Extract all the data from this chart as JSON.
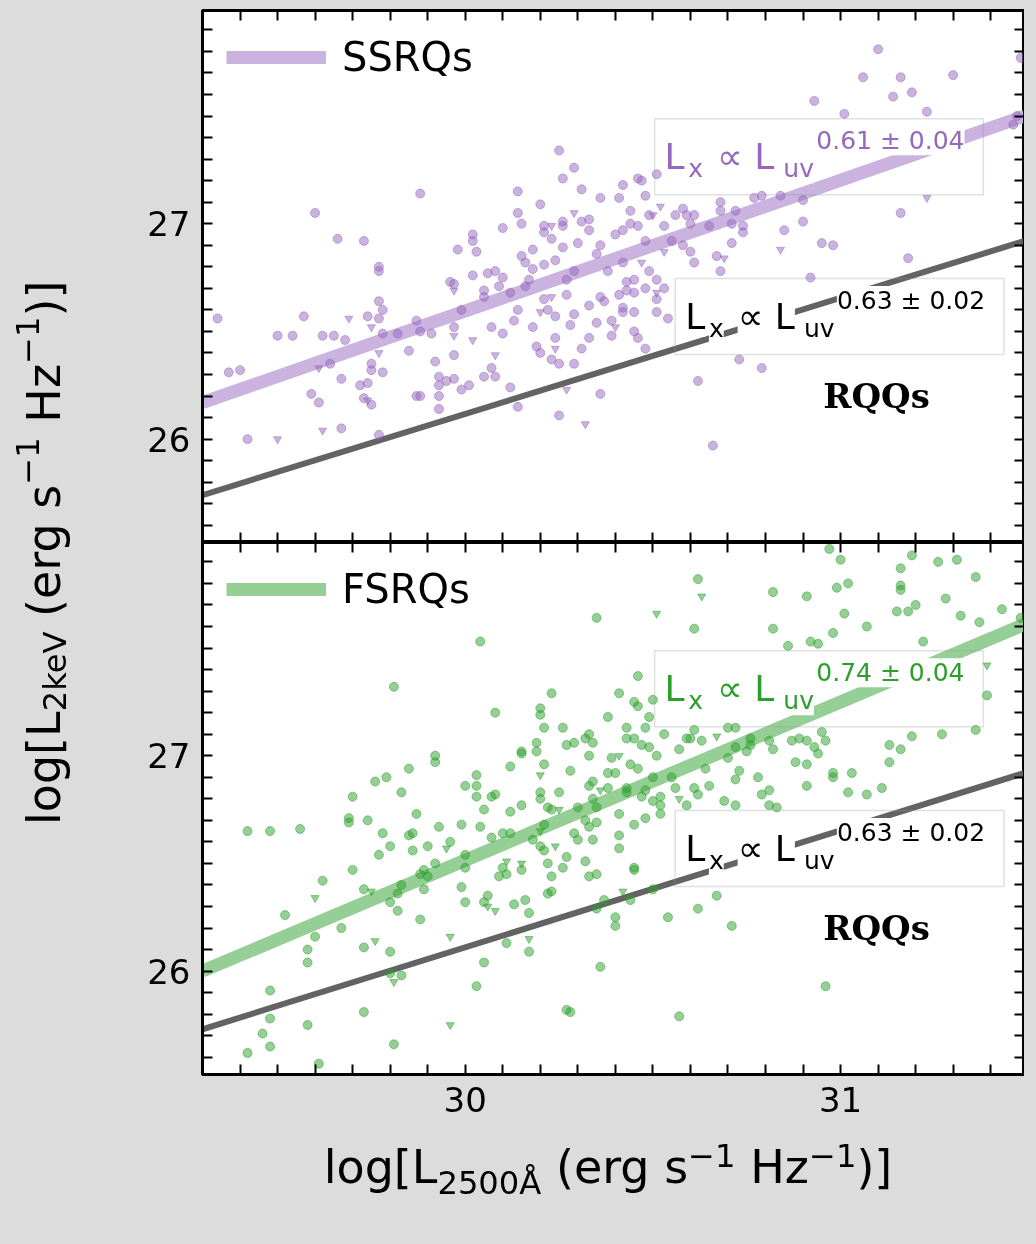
{
  "chart_data": [
    {
      "type": "scatter",
      "ylabel": "log[L$_{2keV}$ (erg s$^{−1}$ Hz$^{−1}$)]",
      "legend": "top left",
      "tick_labels": "y",
      "xlim": [
        29.3,
        31.49
      ],
      "ylim": [
        25.52,
        27.99
      ],
      "xticks": [
        {
          "value": 29.4,
          "label": null
        },
        {
          "value": 29.5,
          "label": null
        },
        {
          "value": 29.6,
          "label": null
        },
        {
          "value": 29.7,
          "label": null
        },
        {
          "value": 29.8,
          "label": null
        },
        {
          "value": 29.9,
          "label": null
        },
        30,
        {
          "value": 30.1,
          "label": null
        },
        {
          "value": 30.2,
          "label": null
        },
        {
          "value": 30.3,
          "label": null
        },
        {
          "value": 30.4,
          "label": null
        },
        {
          "value": 30.5,
          "label": null
        },
        {
          "value": 30.6,
          "label": null
        },
        {
          "value": 30.7,
          "label": null
        },
        {
          "value": 30.8,
          "label": null
        },
        {
          "value": 30.9,
          "label": null
        },
        31,
        {
          "value": 31.1,
          "label": null
        },
        {
          "value": 31.2,
          "label": null
        },
        {
          "value": 31.3,
          "label": null
        },
        {
          "value": 31.4,
          "label": null
        }
      ],
      "yticks": [
        {
          "value": 25.6,
          "label": null
        },
        {
          "value": 25.7,
          "label": null
        },
        {
          "value": 25.8,
          "label": null
        },
        {
          "value": 25.9,
          "label": null
        },
        26,
        {
          "value": 26.1,
          "label": null
        },
        {
          "value": 26.2,
          "label": null
        },
        {
          "value": 26.3,
          "label": null
        },
        {
          "value": 26.4,
          "label": null
        },
        {
          "value": 26.5,
          "label": null
        },
        {
          "value": 26.6,
          "label": null
        },
        {
          "value": 26.7,
          "label": null
        },
        {
          "value": 26.8,
          "label": null
        },
        {
          "value": 26.9,
          "label": null
        },
        27,
        {
          "value": 27.1,
          "label": null
        },
        {
          "value": 27.2,
          "label": null
        },
        {
          "value": 27.3,
          "label": null
        },
        {
          "value": 27.4,
          "label": null
        },
        {
          "value": 27.5,
          "label": null
        },
        {
          "value": 27.6,
          "label": null
        },
        {
          "value": 27.7,
          "label": null
        },
        {
          "value": 27.8,
          "label": null
        },
        {
          "value": 27.9,
          "label": null
        }
      ],
      "annotations": [
        "L$_{x}$ ∝ L$_{uv}$$^{0.61 ± 0.04}$",
        "L$_{x}$ ∝ L$_{uv}$$^{0.63 ± 0.02}$",
        "RQQs"
      ],
      "series": [
        {
          "marker": "circle",
          "color": "#cab3de",
          "x": [
            29.34,
            29.37,
            29.4,
            29.42,
            29.5,
            29.54,
            29.57,
            29.6,
            29.59,
            29.61,
            29.62,
            29.64,
            29.65,
            29.66,
            29.67,
            29.67,
            29.68,
            29.72,
            29.73,
            29.73,
            29.74,
            29.74,
            29.75,
            29.75,
            29.75,
            29.77,
            29.77,
            29.77,
            29.77,
            29.78,
            29.77,
            29.78,
            29.78,
            29.82,
            29.85,
            29.87,
            29.88,
            29.88,
            29.87,
            29.88,
            29.91,
            29.92,
            29.93,
            29.93,
            29.93,
            29.93,
            29.95,
            29.97,
            29.96,
            29.97,
            29.98,
            29.97,
            29.97,
            29.99,
            29.99,
            30.01,
            30.02,
            30.02,
            30.03,
            30.02,
            30.05,
            30.05,
            30.06,
            30.05,
            30.07,
            30.08,
            30.07,
            30.08,
            30.09,
            30.1,
            30.1,
            30.1,
            30.12,
            30.12,
            30.13,
            30.14,
            30.14,
            30.14,
            30.14,
            30.15,
            30.15,
            30.16,
            30.16,
            30.17,
            30.18,
            30.18,
            30.18,
            30.19,
            30.2,
            30.2,
            30.21,
            30.21,
            30.21,
            30.21,
            30.22,
            30.23,
            30.23,
            30.24,
            30.24,
            30.24,
            30.25,
            30.25,
            30.25,
            30.26,
            30.26,
            30.26,
            30.26,
            30.27,
            30.27,
            30.28,
            30.29,
            30.29,
            30.29,
            30.29,
            30.3,
            30.31,
            30.31,
            30.31,
            30.33,
            30.33,
            30.33,
            30.33,
            30.35,
            30.35,
            30.36,
            30.36,
            30.36,
            30.36,
            30.37,
            30.38,
            30.39,
            30.39,
            31.1,
            31.06,
            31.16,
            31.19,
            31.14,
            31.3,
            30.93,
            31.01,
            31.23,
            31.46,
            31.47,
            31.48,
            30.42,
            30.46,
            30.47,
            30.41,
            30.48,
            30.51,
            30.44,
            30.49,
            30.56,
            30.58,
            30.59,
            30.61,
            30.6,
            30.68,
            30.68,
            30.72,
            30.44,
            30.46,
            30.4,
            30.42,
            30.53,
            30.65,
            30.71,
            30.74,
            30.74,
            30.77,
            30.79,
            30.84,
            30.9,
            30.9,
            30.85,
            30.48,
            30.55,
            30.58,
            30.71,
            30.95,
            30.98,
            31.16,
            30.42,
            30.6,
            30.61,
            30.67,
            30.68,
            30.49,
            30.51,
            30.43,
            30.45,
            30.41,
            30.43,
            30.45,
            30.48,
            30.53,
            30.51,
            30.51,
            30.42,
            30.42,
            30.45,
            30.54,
            30.45,
            30.46,
            30.48,
            30.73,
            30.79,
            30.62,
            30.66,
            31.18,
            30.92
          ],
          "values": [
            26.56,
            26.31,
            26.32,
            26.0,
            26.48,
            26.48,
            26.57,
            27.05,
            26.21,
            26.17,
            26.48,
            26.35,
            26.48,
            26.93,
            26.28,
            26.05,
            26.46,
            26.25,
            26.92,
            26.19,
            26.26,
            26.57,
            26.35,
            26.32,
            26.16,
            26.02,
            26.78,
            26.8,
            26.64,
            26.6,
            26.56,
            26.49,
            26.31,
            26.49,
            26.41,
            26.55,
            27.14,
            26.5,
            26.2,
            26.2,
            26.49,
            26.36,
            26.29,
            26.14,
            26.2,
            26.25,
            26.27,
            26.28,
            26.73,
            26.72,
            26.88,
            26.39,
            26.52,
            26.6,
            26.23,
            26.25,
            26.92,
            26.95,
            26.87,
            26.76,
            26.69,
            26.66,
            26.77,
            26.29,
            26.33,
            26.29,
            26.52,
            26.78,
            26.71,
            26.98,
            26.75,
            26.49,
            26.68,
            26.24,
            26.55,
            26.15,
            26.6,
            27.05,
            27.15,
            26.85,
            27.0,
            26.82,
            26.71,
            26.74,
            26.88,
            26.52,
            26.79,
            26.43,
            27.09,
            26.4,
            26.81,
            26.65,
            26.99,
            26.96,
            26.6,
            26.37,
            26.93,
            26.57,
            26.83,
            26.47,
            26.35,
            26.11,
            27.34,
            26.89,
            27.21,
            26.99,
            27.01,
            26.74,
            26.67,
            26.53,
            26.35,
            26.58,
            27.26,
            26.78,
            26.91,
            27.01,
            27.16,
            26.42,
            26.47,
            26.97,
            27.02,
            26.62,
            26.86,
            26.54,
            27.12,
            26.66,
            26.9,
            26.21,
            26.64,
            26.78,
            26.55,
            26.48,
            27.81,
            27.68,
            27.68,
            27.61,
            27.59,
            27.69,
            27.57,
            27.51,
            27.52,
            27.46,
            27.5,
            27.77,
            27.18,
            27.21,
            27.2,
            27.12,
            27.13,
            27.23,
            27.06,
            27.04,
            27.04,
            27.07,
            27.04,
            27.04,
            27.0,
            27.1,
            27.06,
            27.06,
            27.0,
            26.99,
            26.95,
            26.97,
            26.99,
            26.99,
            27.0,
            26.99,
            26.96,
            27.12,
            27.13,
            27.13,
            27.11,
            27.01,
            26.97,
            26.92,
            26.92,
            26.9,
            26.91,
            26.91,
            26.9,
            27.05,
            26.82,
            26.87,
            26.82,
            26.85,
            26.78,
            26.78,
            26.74,
            26.73,
            26.74,
            26.67,
            26.69,
            26.68,
            26.7,
            26.7,
            26.65,
            26.59,
            26.61,
            26.59,
            26.59,
            26.56,
            26.5,
            26.47,
            26.42,
            26.37,
            26.33,
            26.27,
            25.97,
            26.84,
            26.75
          ]
        },
        {
          "marker": "triangle",
          "color": "#cab3de",
          "x": [
            29.5,
            29.62,
            29.61,
            29.69,
            29.75,
            29.77,
            29.74,
            29.97,
            29.97,
            30.02,
            30.08,
            30.2,
            30.23,
            30.24,
            30.27,
            30.32,
            30.29,
            30.23,
            30.52,
            30.5,
            30.53,
            30.47,
            30.69,
            30.84,
            31.23,
            30.4,
            30.51
          ],
          "values": [
            26.0,
            26.04,
            26.33,
            26.56,
            26.52,
            26.4,
            26.18,
            26.69,
            26.48,
            26.46,
            26.39,
            26.59,
            26.66,
            26.42,
            26.23,
            26.07,
            27.05,
            26.99,
            27.08,
            27.04,
            26.87,
            26.82,
            26.84,
            26.88,
            27.12,
            26.52,
            26.68
          ]
        },
        {
          "type": "line",
          "color": "#636363",
          "x": [
            29.3,
            31.49
          ],
          "values": [
            25.74,
            26.92
          ]
        },
        {
          "type": "line",
          "name": "SSRQs",
          "color": "#cab3de",
          "x": [
            29.3,
            31.49
          ],
          "values": [
            26.17,
            27.5
          ]
        }
      ]
    },
    {
      "type": "scatter",
      "xlabel": "log[L$_{2500Å}$ (erg s$^{−1}$ Hz$^{−1}$)]",
      "legend": "top left",
      "xlim": [
        29.3,
        31.49
      ],
      "ylim": [
        25.52,
        27.99
      ],
      "xticks": [
        {
          "value": 29.4,
          "label": null
        },
        {
          "value": 29.5,
          "label": null
        },
        {
          "value": 29.6,
          "label": null
        },
        {
          "value": 29.7,
          "label": null
        },
        {
          "value": 29.8,
          "label": null
        },
        {
          "value": 29.9,
          "label": null
        },
        30,
        {
          "value": 30.1,
          "label": null
        },
        {
          "value": 30.2,
          "label": null
        },
        {
          "value": 30.3,
          "label": null
        },
        {
          "value": 30.4,
          "label": null
        },
        {
          "value": 30.5,
          "label": null
        },
        {
          "value": 30.6,
          "label": null
        },
        {
          "value": 30.7,
          "label": null
        },
        {
          "value": 30.8,
          "label": null
        },
        {
          "value": 30.9,
          "label": null
        },
        31,
        {
          "value": 31.1,
          "label": null
        },
        {
          "value": 31.2,
          "label": null
        },
        {
          "value": 31.3,
          "label": null
        },
        {
          "value": 31.4,
          "label": null
        }
      ],
      "yticks": [
        {
          "value": 25.6,
          "label": null
        },
        {
          "value": 25.7,
          "label": null
        },
        {
          "value": 25.8,
          "label": null
        },
        {
          "value": 25.9,
          "label": null
        },
        26,
        {
          "value": 26.1,
          "label": null
        },
        {
          "value": 26.2,
          "label": null
        },
        {
          "value": 26.3,
          "label": null
        },
        {
          "value": 26.4,
          "label": null
        },
        {
          "value": 26.5,
          "label": null
        },
        {
          "value": 26.6,
          "label": null
        },
        {
          "value": 26.7,
          "label": null
        },
        {
          "value": 26.8,
          "label": null
        },
        {
          "value": 26.9,
          "label": null
        },
        27,
        {
          "value": 27.1,
          "label": null
        },
        {
          "value": 27.2,
          "label": null
        },
        {
          "value": 27.3,
          "label": null
        },
        {
          "value": 27.4,
          "label": null
        },
        {
          "value": 27.5,
          "label": null
        },
        {
          "value": 27.6,
          "label": null
        },
        {
          "value": 27.7,
          "label": null
        },
        {
          "value": 27.8,
          "label": null
        },
        {
          "value": 27.9,
          "label": null
        }
      ],
      "annotations": [
        "L$_{x}$ ∝ L$_{uv}$$^{0.74 ± 0.04}$",
        "L$_{x}$ ∝ L$_{uv}$$^{0.63 ± 0.02}$",
        "RQQs"
      ],
      "series": [
        {
          "marker": "circle",
          "color": "#95cf95",
          "x": [
            29.42,
            29.48,
            29.56,
            29.52,
            29.48,
            29.48,
            29.46,
            29.48,
            29.42,
            29.58,
            29.58,
            29.58,
            29.6,
            29.61,
            29.62,
            29.67,
            29.69,
            29.69,
            29.7,
            29.7,
            29.73,
            29.73,
            29.73,
            29.74,
            29.76,
            29.77,
            29.78,
            29.79,
            29.8,
            29.8,
            29.8,
            29.8,
            29.81,
            29.81,
            29.82,
            29.82,
            29.83,
            29.83,
            29.83,
            29.85,
            29.85,
            29.86,
            29.86,
            29.87,
            29.88,
            29.89,
            29.88,
            29.89,
            29.9,
            29.9,
            29.92,
            29.92,
            29.93,
            29.92,
            29.96,
            29.99,
            29.99,
            30.0,
            30.0,
            30.0,
            30.0,
            30.03,
            30.03,
            30.03,
            30.03,
            30.04,
            30.04,
            30.05,
            30.05,
            30.06,
            30.05,
            30.07,
            30.07,
            30.08,
            30.08,
            30.09,
            30.1,
            30.1,
            30.11,
            30.11,
            30.12,
            30.12,
            30.12,
            30.13,
            30.15,
            30.15,
            30.15,
            30.15,
            30.16,
            30.17,
            30.17,
            30.18,
            30.19,
            30.19,
            30.2,
            30.2,
            30.2,
            30.2,
            30.2,
            30.21,
            30.21,
            30.21,
            30.21,
            30.22,
            30.22,
            30.22,
            30.23,
            30.23,
            30.23,
            30.23,
            30.25,
            30.26,
            30.26,
            30.27,
            30.27,
            30.28,
            30.27,
            30.28,
            30.29,
            30.29,
            30.3,
            30.3,
            30.32,
            30.32,
            30.33,
            30.32,
            30.33,
            30.33,
            30.33,
            30.34,
            30.34,
            30.35,
            30.34,
            30.33,
            30.35,
            30.35,
            30.35,
            30.35,
            30.34,
            30.36,
            30.37,
            30.38,
            30.38,
            30.38,
            30.39,
            30.97,
            31.0,
            31.19,
            31.26,
            31.31,
            31.16,
            31.36,
            30.62,
            30.82,
            30.91,
            30.99,
            31.02,
            31.16,
            31.16,
            31.28,
            31.2,
            31.15,
            31.18,
            31.01,
            31.32,
            31.37,
            31.43,
            31.48,
            30.61,
            30.82,
            31.07,
            30.98,
            30.92,
            30.94,
            30.86,
            31.22,
            30.46,
            30.41,
            30.45,
            30.5,
            30.46,
            30.49,
            30.48,
            30.43,
            30.43,
            30.45,
            30.53,
            30.61,
            30.59,
            30.6,
            30.63,
            30.7,
            30.72,
            30.76,
            30.76,
            30.81,
            30.87,
            30.89,
            30.91,
            30.95,
            30.96,
            30.93,
            30.94,
            30.82,
            30.72,
            30.75,
            30.7,
            30.57,
            30.51,
            30.49,
            30.47,
            31.19,
            31.27,
            31.36,
            31.13,
            31.16,
            31.13,
            31.39,
            30.44,
            30.46,
            30.4,
            30.5,
            30.55,
            30.64,
            30.73,
            30.72,
            30.78,
            30.88,
            30.91,
            30.98,
            30.98,
            31.03,
            30.91,
            31.02,
            31.07,
            31.11,
            30.43,
            30.43,
            30.48,
            30.47,
            30.5,
            30.52,
            30.56,
            30.61,
            30.62,
            30.65,
            30.52,
            30.52,
            30.59,
            30.69,
            30.72,
            30.79,
            30.81,
            30.81,
            30.83,
            30.41,
            30.45,
            30.48,
            30.41,
            30.41,
            30.45,
            30.45,
            30.5,
            30.44,
            30.54,
            30.4,
            30.4,
            30.62,
            30.67,
            30.71,
            30.96,
            30.57
          ],
          "values": [
            26.65,
            26.65,
            26.66,
            26.26,
            25.91,
            25.78,
            25.71,
            25.65,
            25.62,
            26.1,
            26.04,
            25.75,
            26.16,
            25.57,
            26.42,
            26.2,
            26.71,
            26.69,
            26.47,
            26.81,
            26.38,
            26.11,
            25.81,
            26.7,
            26.88,
            26.54,
            26.64,
            26.9,
            26.58,
            26.32,
            26.09,
            25.99,
            27.32,
            25.66,
            26.28,
            26.36,
            25.98,
            26.83,
            26.4,
            26.94,
            26.63,
            26.56,
            26.64,
            26.73,
            26.24,
            26.38,
            26.45,
            26.47,
            26.58,
            26.44,
            27.0,
            26.97,
            26.67,
            26.5,
            26.6,
            26.68,
            26.39,
            26.32,
            26.86,
            26.54,
            26.48,
            25.93,
            26.91,
            26.86,
            26.81,
            26.67,
            27.53,
            26.75,
            26.04,
            26.35,
            26.32,
            26.62,
            26.81,
            27.2,
            26.82,
            26.44,
            26.64,
            26.48,
            26.45,
            26.13,
            26.95,
            26.64,
            26.74,
            26.31,
            26.77,
            27.01,
            27.02,
            26.47,
            26.33,
            26.27,
            26.09,
            26.61,
            27.02,
            27.06,
            27.22,
            27.19,
            26.83,
            26.58,
            26.8,
            26.56,
            26.68,
            27.13,
            26.96,
            26.5,
            26.36,
            26.76,
            26.37,
            27.29,
            26.75,
            26.44,
            26.83,
            26.48,
            27.13,
            26.53,
            25.82,
            25.81,
            27.05,
            26.93,
            27.06,
            26.64,
            26.61,
            26.76,
            26.7,
            26.51,
            26.67,
            27.08,
            26.44,
            27.0,
            27.1,
            26.61,
            27.06,
            26.29,
            26.88,
            26.86,
            26.69,
            26.45,
            27.64,
            26.76,
            26.8,
            26.02,
            26.33,
            26.85,
            27.18,
            26.92,
            26.99,
            27.96,
            27.91,
            27.93,
            27.9,
            27.91,
            27.87,
            27.83,
            27.82,
            27.76,
            27.74,
            27.78,
            27.8,
            27.79,
            27.77,
            27.73,
            27.7,
            27.67,
            27.67,
            27.66,
            27.65,
            27.62,
            27.68,
            27.64,
            27.59,
            27.59,
            27.6,
            27.57,
            27.53,
            27.52,
            27.51,
            27.53,
            27.37,
            27.29,
            27.25,
            27.26,
            27.23,
            27.18,
            27.13,
            27.13,
            27.08,
            27.08,
            27.1,
            27.12,
            27.08,
            27.08,
            27.07,
            27.13,
            27.13,
            27.08,
            27.05,
            27.07,
            27.07,
            27.08,
            27.07,
            27.11,
            27.07,
            27.04,
            27.01,
            27.03,
            27.04,
            27.02,
            26.99,
            27.03,
            27.0,
            27.04,
            27.05,
            27.09,
            27.1,
            27.12,
            27.05,
            27.03,
            26.97,
            27.28,
            26.96,
            26.94,
            26.92,
            26.9,
            26.9,
            26.94,
            26.93,
            26.89,
            26.9,
            26.97,
            26.96,
            26.92,
            26.9,
            26.92,
            26.86,
            26.83,
            26.82,
            26.85,
            26.85,
            26.83,
            26.84,
            26.81,
            26.79,
            26.81,
            26.85,
            26.85,
            26.82,
            26.86,
            26.77,
            26.73,
            26.77,
            26.79,
            26.77,
            26.82,
            26.84,
            26.77,
            26.76,
            26.73,
            26.68,
            26.71,
            26.63,
            26.57,
            26.48,
            26.47,
            26.38,
            26.33,
            26.25,
            26.25,
            26.21,
            26.29,
            26.35,
            26.21,
            25.93,
            25.79
          ]
        },
        {
          "marker": "triangle",
          "color": "#95cf95",
          "x": [
            29.6,
            29.75,
            29.76,
            29.81,
            29.95,
            29.96,
            29.96,
            30.06,
            30.08,
            30.11,
            30.15,
            30.17,
            30.2,
            30.24,
            30.25,
            30.36,
            30.2,
            30.51,
            30.63,
            31.39,
            30.41,
            30.57,
            30.67,
            30.42
          ],
          "values": [
            26.34,
            26.37,
            26.14,
            25.95,
            26.57,
            26.16,
            25.75,
            26.3,
            26.28,
            26.51,
            26.5,
            26.15,
            26.91,
            26.58,
            26.75,
            26.84,
            26.65,
            27.66,
            27.74,
            27.42,
            27.0,
            26.8,
            27.09,
            26.37
          ]
        },
        {
          "type": "line",
          "color": "#636363",
          "x": [
            29.3,
            31.49
          ],
          "values": [
            25.73,
            26.92
          ]
        },
        {
          "type": "line",
          "name": "FSRQs",
          "color": "#95cf95",
          "x": [
            29.3,
            31.49
          ],
          "values": [
            26.0,
            27.61
          ]
        }
      ]
    }
  ]
}
